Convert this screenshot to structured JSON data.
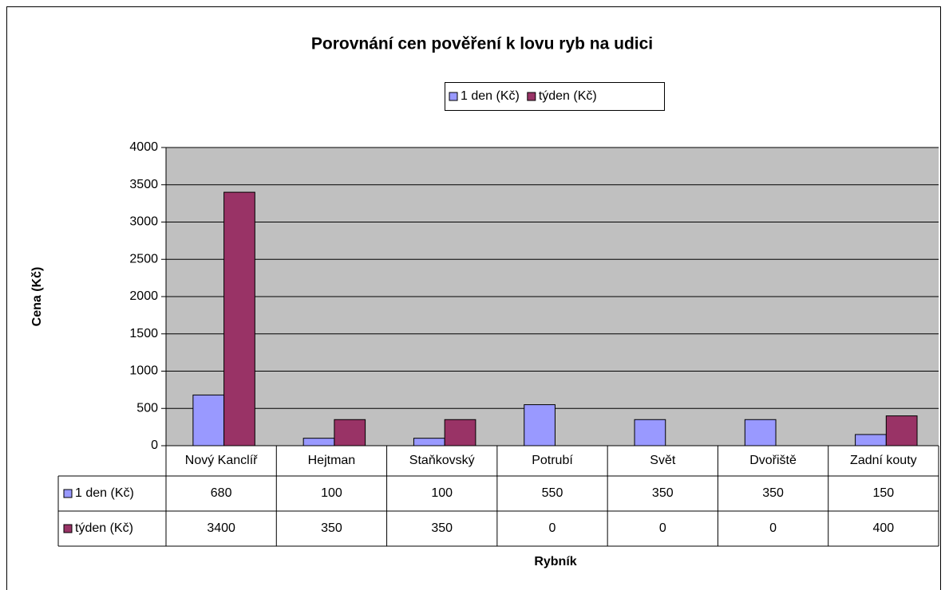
{
  "chart_data": {
    "type": "bar",
    "title": "Porovnání cen pověření k lovu ryb na udici",
    "x_label": "Rybník",
    "y_label": "Cena (Kč)",
    "categories": [
      "Nový Kanclíř",
      "Hejtman",
      "Staňkovský",
      "Potrubí",
      "Svět",
      "Dvořiště",
      "Zadní kouty"
    ],
    "series": [
      {
        "name": "1 den (Kč)",
        "color": "#9999ff",
        "values": [
          680,
          100,
          100,
          550,
          350,
          350,
          150
        ]
      },
      {
        "name": "týden (Kč)",
        "color": "#993366",
        "values": [
          3400,
          350,
          350,
          0,
          0,
          0,
          400
        ]
      }
    ],
    "ylim": [
      0,
      4000
    ],
    "yticks": [
      0,
      500,
      1000,
      1500,
      2000,
      2500,
      3000,
      3500,
      4000
    ],
    "grid": true,
    "legend": "top"
  }
}
